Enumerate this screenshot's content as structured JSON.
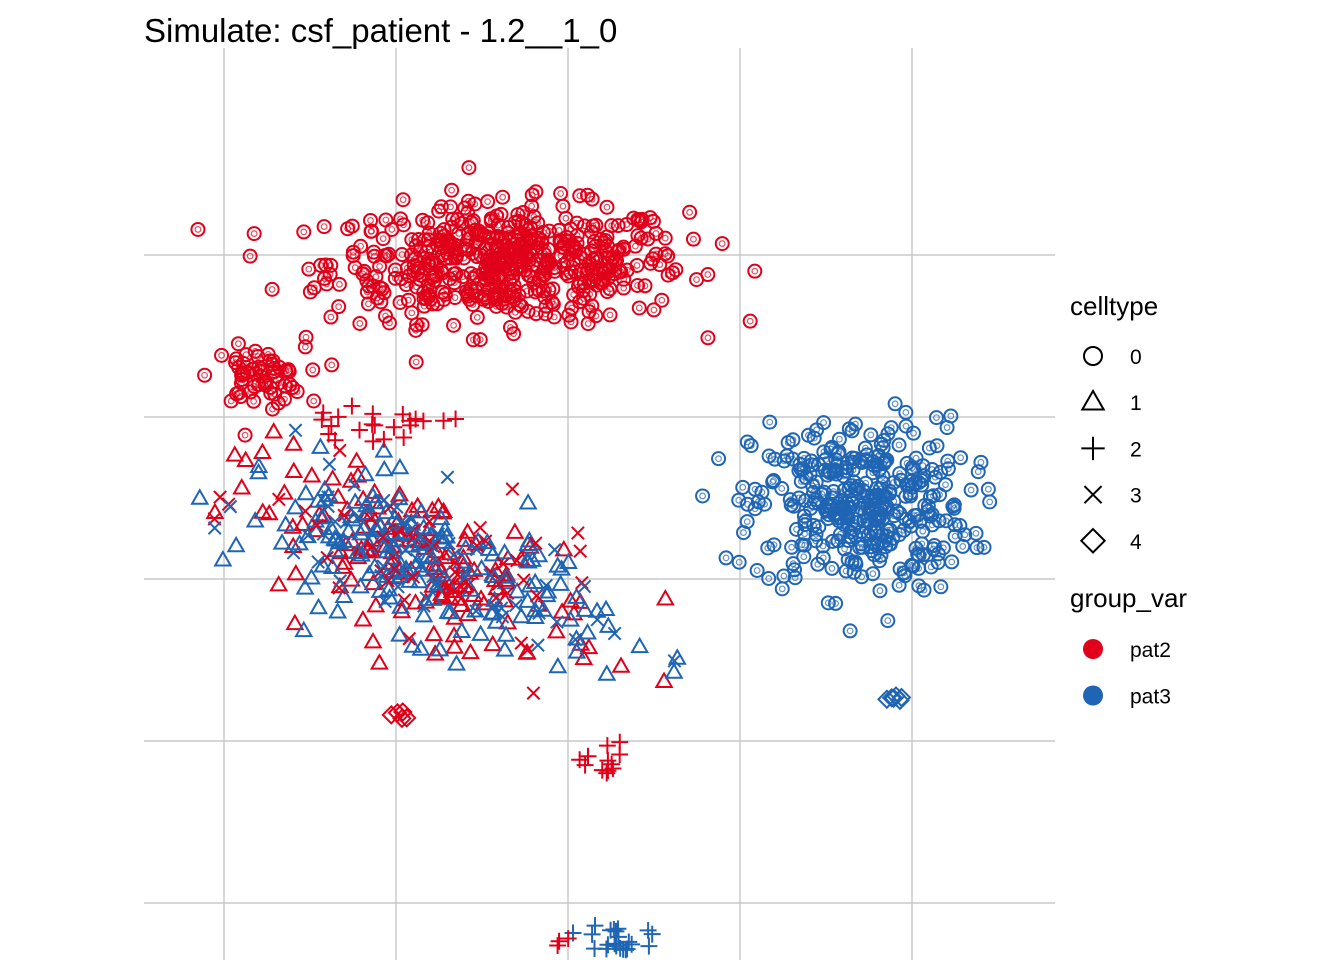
{
  "chart_data": {
    "type": "scatter",
    "title": "Simulate: csf_patient - 1.2__1_0",
    "xlabel": "",
    "ylabel": "",
    "xlim": [
      0,
      100
    ],
    "ylim": [
      0,
      100
    ],
    "grid": true,
    "x_gridlines": [
      10,
      30,
      50,
      70,
      90
    ],
    "y_gridlines": [
      10,
      30,
      50,
      70,
      90
    ],
    "legend_placement": "right",
    "legends": {
      "celltype": {
        "title": "celltype",
        "items": [
          {
            "label": "0",
            "shape": "circle"
          },
          {
            "label": "1",
            "shape": "triangle"
          },
          {
            "label": "2",
            "shape": "plus"
          },
          {
            "label": "3",
            "shape": "cross"
          },
          {
            "label": "4",
            "shape": "diamond"
          }
        ]
      },
      "group_var": {
        "title": "group_var",
        "items": [
          {
            "label": "pat2",
            "color": "#e0001a"
          },
          {
            "label": "pat3",
            "color": "#1f65b4"
          }
        ]
      }
    },
    "clusters": [
      {
        "group": "pat2",
        "celltype": "0",
        "center": [
          43,
          89
        ],
        "spread": [
          23,
          8
        ],
        "n": 520
      },
      {
        "group": "pat2",
        "celltype": "0",
        "center": [
          14,
          75
        ],
        "spread": [
          6,
          4
        ],
        "n": 60
      },
      {
        "group": "pat3",
        "celltype": "0",
        "center": [
          84,
          59
        ],
        "spread": [
          14,
          12
        ],
        "n": 360
      },
      {
        "group": "pat2",
        "celltype": "1",
        "center": [
          33,
          52
        ],
        "spread": [
          24,
          10
        ],
        "n": 150
      },
      {
        "group": "pat3",
        "celltype": "1",
        "center": [
          33,
          52
        ],
        "spread": [
          24,
          10
        ],
        "n": 170
      },
      {
        "group": "pat2",
        "celltype": "3",
        "center": [
          35,
          51
        ],
        "spread": [
          22,
          10
        ],
        "n": 60
      },
      {
        "group": "pat3",
        "celltype": "3",
        "center": [
          33,
          52
        ],
        "spread": [
          22,
          10
        ],
        "n": 60
      },
      {
        "group": "pat2",
        "celltype": "2",
        "center": [
          27,
          69
        ],
        "spread": [
          10,
          2
        ],
        "n": 22
      },
      {
        "group": "pat2",
        "celltype": "2",
        "center": [
          55,
          28
        ],
        "spread": [
          6,
          3
        ],
        "n": 12
      },
      {
        "group": "pat3",
        "celltype": "2",
        "center": [
          56,
          4
        ],
        "spread": [
          4,
          4
        ],
        "n": 55
      },
      {
        "group": "pat2",
        "celltype": "2",
        "center": [
          49,
          5
        ],
        "spread": [
          2,
          3
        ],
        "n": 6
      },
      {
        "group": "pat3",
        "celltype": "4",
        "center": [
          88,
          35.5
        ],
        "spread": [
          0.8,
          0.5
        ],
        "n": 6
      },
      {
        "group": "pat2",
        "celltype": "4",
        "center": [
          30,
          33
        ],
        "spread": [
          2,
          1
        ],
        "n": 5
      }
    ]
  }
}
